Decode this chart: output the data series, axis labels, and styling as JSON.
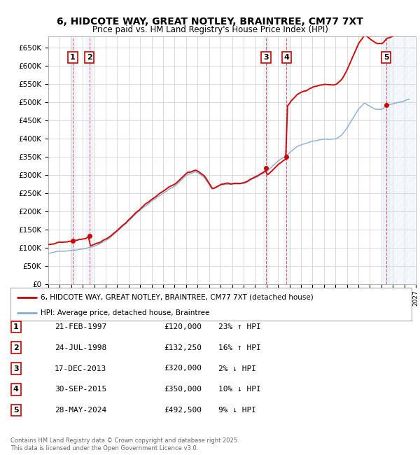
{
  "title_line1": "6, HIDCOTE WAY, GREAT NOTLEY, BRAINTREE, CM77 7XT",
  "title_line2": "Price paid vs. HM Land Registry's House Price Index (HPI)",
  "ylim": [
    0,
    680000
  ],
  "xlim_start": 1995.0,
  "xlim_end": 2027.0,
  "yticks": [
    0,
    50000,
    100000,
    150000,
    200000,
    250000,
    300000,
    350000,
    400000,
    450000,
    500000,
    550000,
    600000,
    650000
  ],
  "ytick_labels": [
    "£0",
    "£50K",
    "£100K",
    "£150K",
    "£200K",
    "£250K",
    "£300K",
    "£350K",
    "£400K",
    "£450K",
    "£500K",
    "£550K",
    "£600K",
    "£650K"
  ],
  "sale_dates": [
    1997.13,
    1998.57,
    2013.96,
    2015.75,
    2024.41
  ],
  "sale_prices": [
    120000,
    132250,
    320000,
    350000,
    492500
  ],
  "sale_labels": [
    "1",
    "2",
    "3",
    "4",
    "5"
  ],
  "sale_pct": [
    "23% ↑ HPI",
    "16% ↑ HPI",
    "2% ↓ HPI",
    "10% ↓ HPI",
    "9% ↓ HPI"
  ],
  "sale_date_labels": [
    "21-FEB-1997",
    "24-JUL-1998",
    "17-DEC-2013",
    "30-SEP-2015",
    "28-MAY-2024"
  ],
  "sale_price_labels": [
    "£120,000",
    "£132,250",
    "£320,000",
    "£350,000",
    "£492,500"
  ],
  "line_color_red": "#cc0000",
  "line_color_blue": "#88aacc",
  "legend_line1": "6, HIDCOTE WAY, GREAT NOTLEY, BRAINTREE, CM77 7XT (detached house)",
  "legend_line2": "HPI: Average price, detached house, Braintree",
  "footnote": "Contains HM Land Registry data © Crown copyright and database right 2025.\nThis data is licensed under the Open Government Licence v3.0.",
  "background_color": "#ffffff",
  "grid_color": "#cccccc"
}
